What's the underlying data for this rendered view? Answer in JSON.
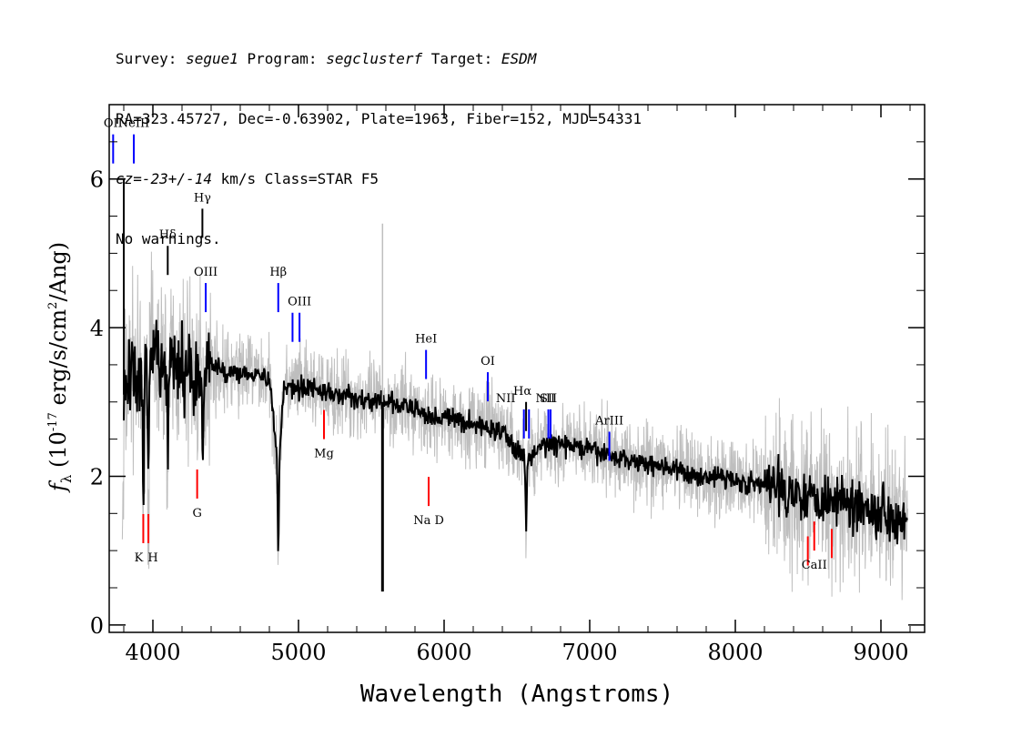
{
  "header": {
    "line1": {
      "survey_label": "Survey: ",
      "survey": "segue1",
      "program_label": " Program: ",
      "program": "segclusterf",
      "target_label": " Target: ",
      "target": "ESDM"
    },
    "line2": "RA=323.45727, Dec=-0.63902, Plate=1963, Fiber=152, MJD=54331",
    "line3": {
      "cz": "cz=-23+/-14",
      "cz_units": " km/s Class=STAR F5"
    },
    "line4": "No warnings."
  },
  "chart_data": {
    "type": "line",
    "title": "",
    "xlabel": "Wavelength (Angstroms)",
    "ylabel": "f_λ (10^-17 erg/s/cm^2/Ang)",
    "xlim": [
      3700,
      9300
    ],
    "ylim": [
      -0.1,
      7.0
    ],
    "xticks": [
      4000,
      5000,
      6000,
      7000,
      8000,
      9000
    ],
    "yticks": [
      0,
      2,
      4,
      6
    ],
    "grid": false,
    "colors": {
      "flux": "#000000",
      "noise": "#bebebe",
      "emission": "#0000ff",
      "absorption": "#ff0000",
      "sky": "#000000"
    },
    "series": [
      {
        "style": "smoothed-black",
        "x": [
          3800,
          3850,
          3900,
          3950,
          4000,
          4050,
          4100,
          4150,
          4200,
          4250,
          4300,
          4350,
          4400,
          4500,
          4600,
          4700,
          4800,
          4861,
          4900,
          5000,
          5100,
          5200,
          5300,
          5400,
          5500,
          5600,
          5700,
          5800,
          5900,
          6000,
          6200,
          6400,
          6563,
          6700,
          6900,
          7100,
          7300,
          7500,
          7700,
          7900,
          8100,
          8300,
          8500,
          8700,
          8900,
          9100,
          9180
        ],
        "values": [
          3.1,
          3.5,
          3.2,
          3.4,
          3.6,
          3.5,
          3.4,
          3.5,
          3.4,
          3.5,
          3.3,
          3.4,
          3.5,
          3.4,
          3.4,
          3.4,
          3.3,
          2.1,
          3.2,
          3.2,
          3.2,
          3.1,
          3.1,
          3.05,
          3.0,
          3.0,
          2.95,
          2.9,
          2.8,
          2.8,
          2.7,
          2.6,
          2.2,
          2.45,
          2.4,
          2.3,
          2.2,
          2.15,
          2.0,
          2.0,
          1.9,
          1.85,
          1.75,
          1.7,
          1.6,
          1.45,
          1.5
        ]
      },
      {
        "style": "noise-grey",
        "band": 0.35
      },
      {
        "style": "sky-residual",
        "x": 5577,
        "values": [
          0.45,
          5.4
        ]
      },
      {
        "style": "spike",
        "x": [
          3760,
          3800
        ],
        "values": [
          6.0,
          6.0
        ]
      }
    ],
    "absorption_lines": [
      {
        "label": "K",
        "wavelength": 3934,
        "value": 1.1
      },
      {
        "label": "H",
        "wavelength": 3969,
        "value": 1.1
      },
      {
        "label": "G",
        "wavelength": 4304,
        "value": 1.7
      },
      {
        "label": "Mg",
        "wavelength": 5175,
        "value": 2.5
      },
      {
        "label": "Na D",
        "wavelength": 5894,
        "value": 1.6
      },
      {
        "label": "CaII",
        "wavelength": 8498,
        "value": 0.8
      },
      {
        "label": "CaII",
        "wavelength": 8542,
        "value": 1.0
      },
      {
        "label": "CaII",
        "wavelength": 8662,
        "value": 0.9
      }
    ],
    "emission_lines": [
      {
        "label": "OII",
        "wavelength": 3727,
        "value": 6.6
      },
      {
        "label": "NeIII",
        "wavelength": 3869,
        "value": 6.6
      },
      {
        "label": "Hδ",
        "wavelength": 4102,
        "value": 5.1,
        "color": "#000000"
      },
      {
        "label": "Hγ",
        "wavelength": 4340,
        "value": 5.6,
        "color": "#000000"
      },
      {
        "label": "OIII",
        "wavelength": 4363,
        "value": 4.6
      },
      {
        "label": "Hβ",
        "wavelength": 4861,
        "value": 4.6
      },
      {
        "label": "OIII",
        "wavelength": 4959,
        "value": 4.2
      },
      {
        "label": "OIII",
        "wavelength": 5007,
        "value": 4.2
      },
      {
        "label": "HeI",
        "wavelength": 5876,
        "value": 3.7
      },
      {
        "label": "OI",
        "wavelength": 6300,
        "value": 3.4
      },
      {
        "label": "NII",
        "wavelength": 6548,
        "value": 2.9
      },
      {
        "label": "Hα",
        "wavelength": 6563,
        "value": 3.0,
        "color": "#000000"
      },
      {
        "label": "NII",
        "wavelength": 6583,
        "value": 2.9
      },
      {
        "label": "SII",
        "wavelength": 6716,
        "value": 2.9
      },
      {
        "label": "SII",
        "wavelength": 6731,
        "value": 2.9
      },
      {
        "label": "ArIII",
        "wavelength": 7135,
        "value": 2.6
      }
    ]
  }
}
